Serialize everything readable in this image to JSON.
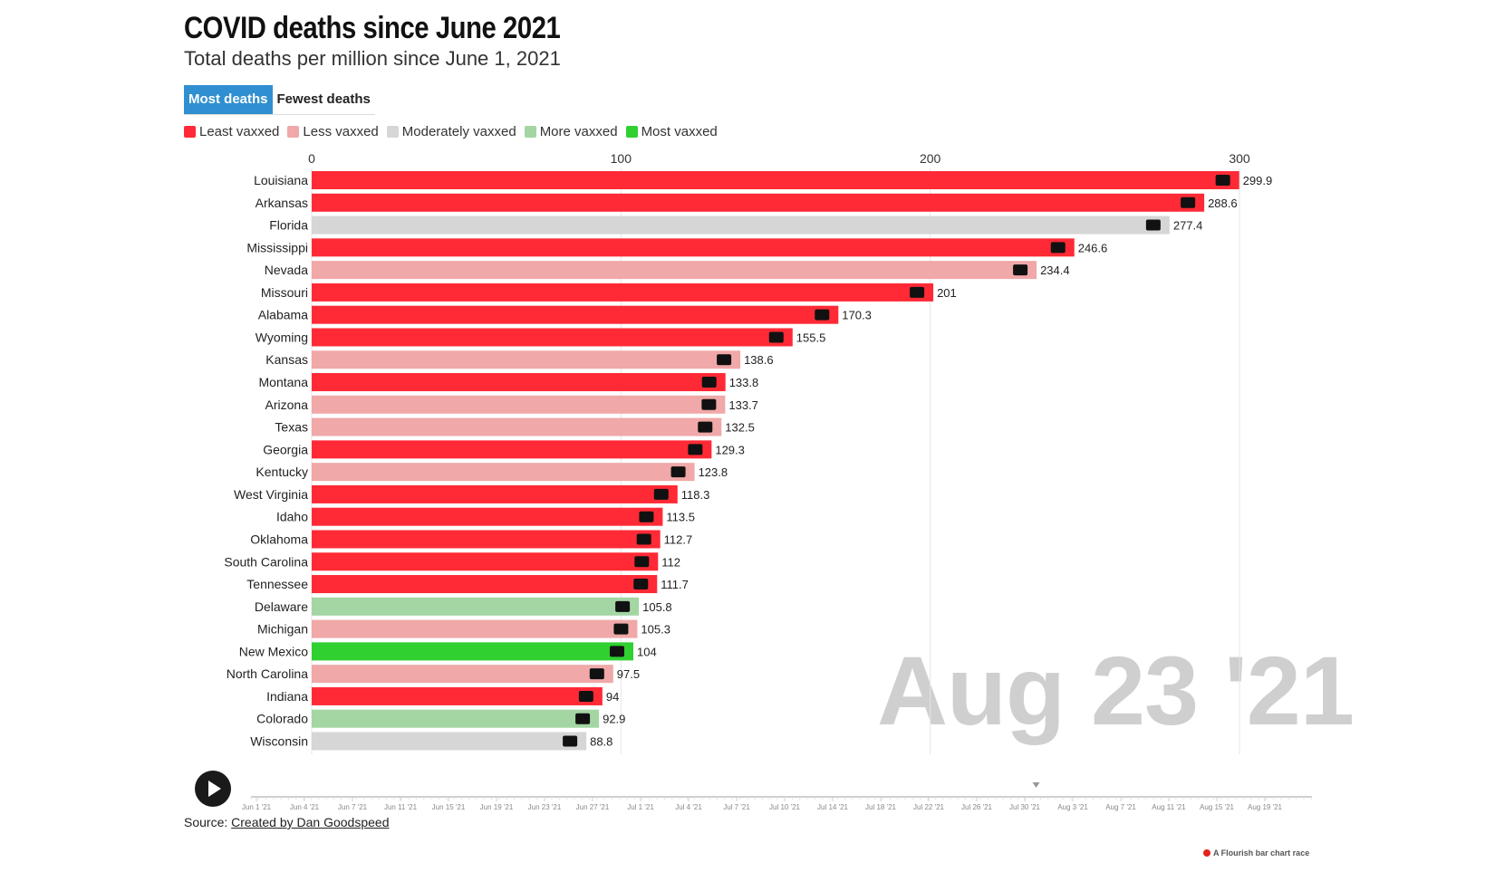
{
  "header": {
    "title": "COVID deaths since June 2021",
    "subtitle": "Total deaths per million since June 1, 2021"
  },
  "tabs": [
    {
      "label": "Most deaths",
      "active": true
    },
    {
      "label": "Fewest deaths",
      "active": false
    }
  ],
  "legend": [
    {
      "label": "Least vaxxed",
      "color": "#ff2a35"
    },
    {
      "label": "Less vaxxed",
      "color": "#f0a8a8"
    },
    {
      "label": "Moderately vaxxed",
      "color": "#d6d6d6"
    },
    {
      "label": "More vaxxed",
      "color": "#a3d6a3"
    },
    {
      "label": "Most vaxxed",
      "color": "#30d030"
    }
  ],
  "current_date": "Aug 23 '21",
  "source": {
    "prefix": "Source: ",
    "link_text": "Created by Dan Goodspeed"
  },
  "credit": "A Flourish bar chart race",
  "timeline": {
    "ticks": [
      "Jun 1 '21",
      "Jun 4 '21",
      "Jun 7 '21",
      "Jun 11 '21",
      "Jun 15 '21",
      "Jun 19 '21",
      "Jun 23 '21",
      "Jun 27 '21",
      "Jul 1 '21",
      "Jul 4 '21",
      "Jul 7 '21",
      "Jul 10 '21",
      "Jul 14 '21",
      "Jul 18 '21",
      "Jul 22 '21",
      "Jul 26 '21",
      "Jul 30 '21",
      "Aug 3 '21",
      "Aug 7 '21",
      "Aug 11 '21",
      "Aug 15 '21",
      "Aug 19 '21"
    ],
    "position_fraction": 0.74
  },
  "chart_data": {
    "type": "bar",
    "orientation": "horizontal",
    "xlim": [
      0,
      300
    ],
    "xticks": [
      0,
      100,
      200,
      300
    ],
    "grid": true,
    "categories": [
      "Louisiana",
      "Arkansas",
      "Florida",
      "Mississippi",
      "Nevada",
      "Missouri",
      "Alabama",
      "Wyoming",
      "Kansas",
      "Montana",
      "Arizona",
      "Texas",
      "Georgia",
      "Kentucky",
      "West Virginia",
      "Idaho",
      "Oklahoma",
      "South Carolina",
      "Tennessee",
      "Delaware",
      "Michigan",
      "New Mexico",
      "North Carolina",
      "Indiana",
      "Colorado",
      "Wisconsin"
    ],
    "values": [
      299.9,
      288.6,
      277.4,
      246.6,
      234.4,
      201,
      170.3,
      155.5,
      138.6,
      133.8,
      133.7,
      132.5,
      129.3,
      123.8,
      118.3,
      113.5,
      112.7,
      112,
      111.7,
      105.8,
      105.3,
      104,
      97.5,
      94,
      92.9,
      88.8
    ],
    "groups": [
      "Least vaxxed",
      "Least vaxxed",
      "Moderately vaxxed",
      "Least vaxxed",
      "Less vaxxed",
      "Least vaxxed",
      "Least vaxxed",
      "Least vaxxed",
      "Less vaxxed",
      "Least vaxxed",
      "Less vaxxed",
      "Less vaxxed",
      "Least vaxxed",
      "Less vaxxed",
      "Least vaxxed",
      "Least vaxxed",
      "Least vaxxed",
      "Least vaxxed",
      "Least vaxxed",
      "More vaxxed",
      "Less vaxxed",
      "Most vaxxed",
      "Less vaxxed",
      "Least vaxxed",
      "More vaxxed",
      "Moderately vaxxed"
    ]
  }
}
